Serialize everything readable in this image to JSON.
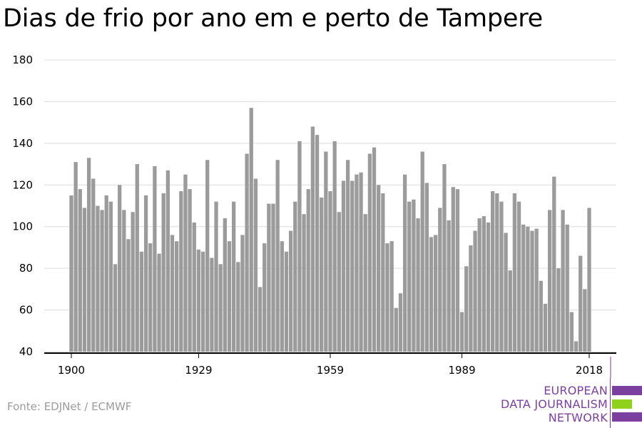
{
  "title": "Dias de frio por ano em e perto de Tampere",
  "source": "Fonte: EDJNet / ECMWF",
  "logo": {
    "lines": [
      "EUROPEAN",
      "DATA JOURNALISM",
      "NETWORK"
    ],
    "colors": {
      "purple": "#7b3fa0",
      "green": "#8fd11c"
    }
  },
  "colors": {
    "bar": "#9b9b9b",
    "grid": "#dddddd",
    "axis": "#000000"
  },
  "chart_data": {
    "type": "bar",
    "title": "Dias de frio por ano em e perto de Tampere",
    "xlabel": "",
    "ylabel": "",
    "ylim": [
      40,
      180
    ],
    "yticks": [
      40,
      60,
      80,
      100,
      120,
      140,
      160,
      180
    ],
    "xticks": [
      1900,
      1929,
      1959,
      1989,
      2018
    ],
    "grid": true,
    "x": [
      1900,
      1901,
      1902,
      1903,
      1904,
      1905,
      1906,
      1907,
      1908,
      1909,
      1910,
      1911,
      1912,
      1913,
      1914,
      1915,
      1916,
      1917,
      1918,
      1919,
      1920,
      1921,
      1922,
      1923,
      1924,
      1925,
      1926,
      1927,
      1928,
      1929,
      1930,
      1931,
      1932,
      1933,
      1934,
      1935,
      1936,
      1937,
      1938,
      1939,
      1940,
      1941,
      1942,
      1943,
      1944,
      1945,
      1946,
      1947,
      1948,
      1949,
      1950,
      1951,
      1952,
      1953,
      1954,
      1955,
      1956,
      1957,
      1958,
      1959,
      1960,
      1961,
      1962,
      1963,
      1964,
      1965,
      1966,
      1967,
      1968,
      1969,
      1970,
      1971,
      1972,
      1973,
      1974,
      1975,
      1976,
      1977,
      1978,
      1979,
      1980,
      1981,
      1982,
      1983,
      1984,
      1985,
      1986,
      1987,
      1988,
      1989,
      1990,
      1991,
      1992,
      1993,
      1994,
      1995,
      1996,
      1997,
      1998,
      1999,
      2000,
      2001,
      2002,
      2003,
      2004,
      2005,
      2006,
      2007,
      2008,
      2009,
      2010,
      2011,
      2012,
      2013,
      2014,
      2015,
      2016,
      2017,
      2018
    ],
    "values": [
      115,
      131,
      118,
      109,
      133,
      123,
      110,
      108,
      115,
      112,
      82,
      120,
      108,
      94,
      107,
      130,
      88,
      115,
      92,
      129,
      87,
      116,
      127,
      96,
      93,
      117,
      125,
      118,
      102,
      89,
      88,
      132,
      85,
      112,
      82,
      104,
      93,
      112,
      83,
      96,
      135,
      157,
      123,
      71,
      92,
      111,
      111,
      132,
      93,
      88,
      98,
      112,
      141,
      106,
      118,
      148,
      144,
      114,
      136,
      117,
      141,
      107,
      122,
      132,
      122,
      125,
      126,
      106,
      135,
      138,
      120,
      116,
      92,
      93,
      61,
      68,
      125,
      112,
      113,
      104,
      136,
      121,
      95,
      96,
      109,
      130,
      103,
      119,
      118,
      59,
      81,
      91,
      98,
      104,
      105,
      102,
      117,
      116,
      112,
      97,
      79,
      116,
      112,
      101,
      100,
      98,
      99,
      74,
      63,
      108,
      124,
      80,
      108,
      101,
      59,
      45,
      86,
      70,
      109
    ]
  }
}
